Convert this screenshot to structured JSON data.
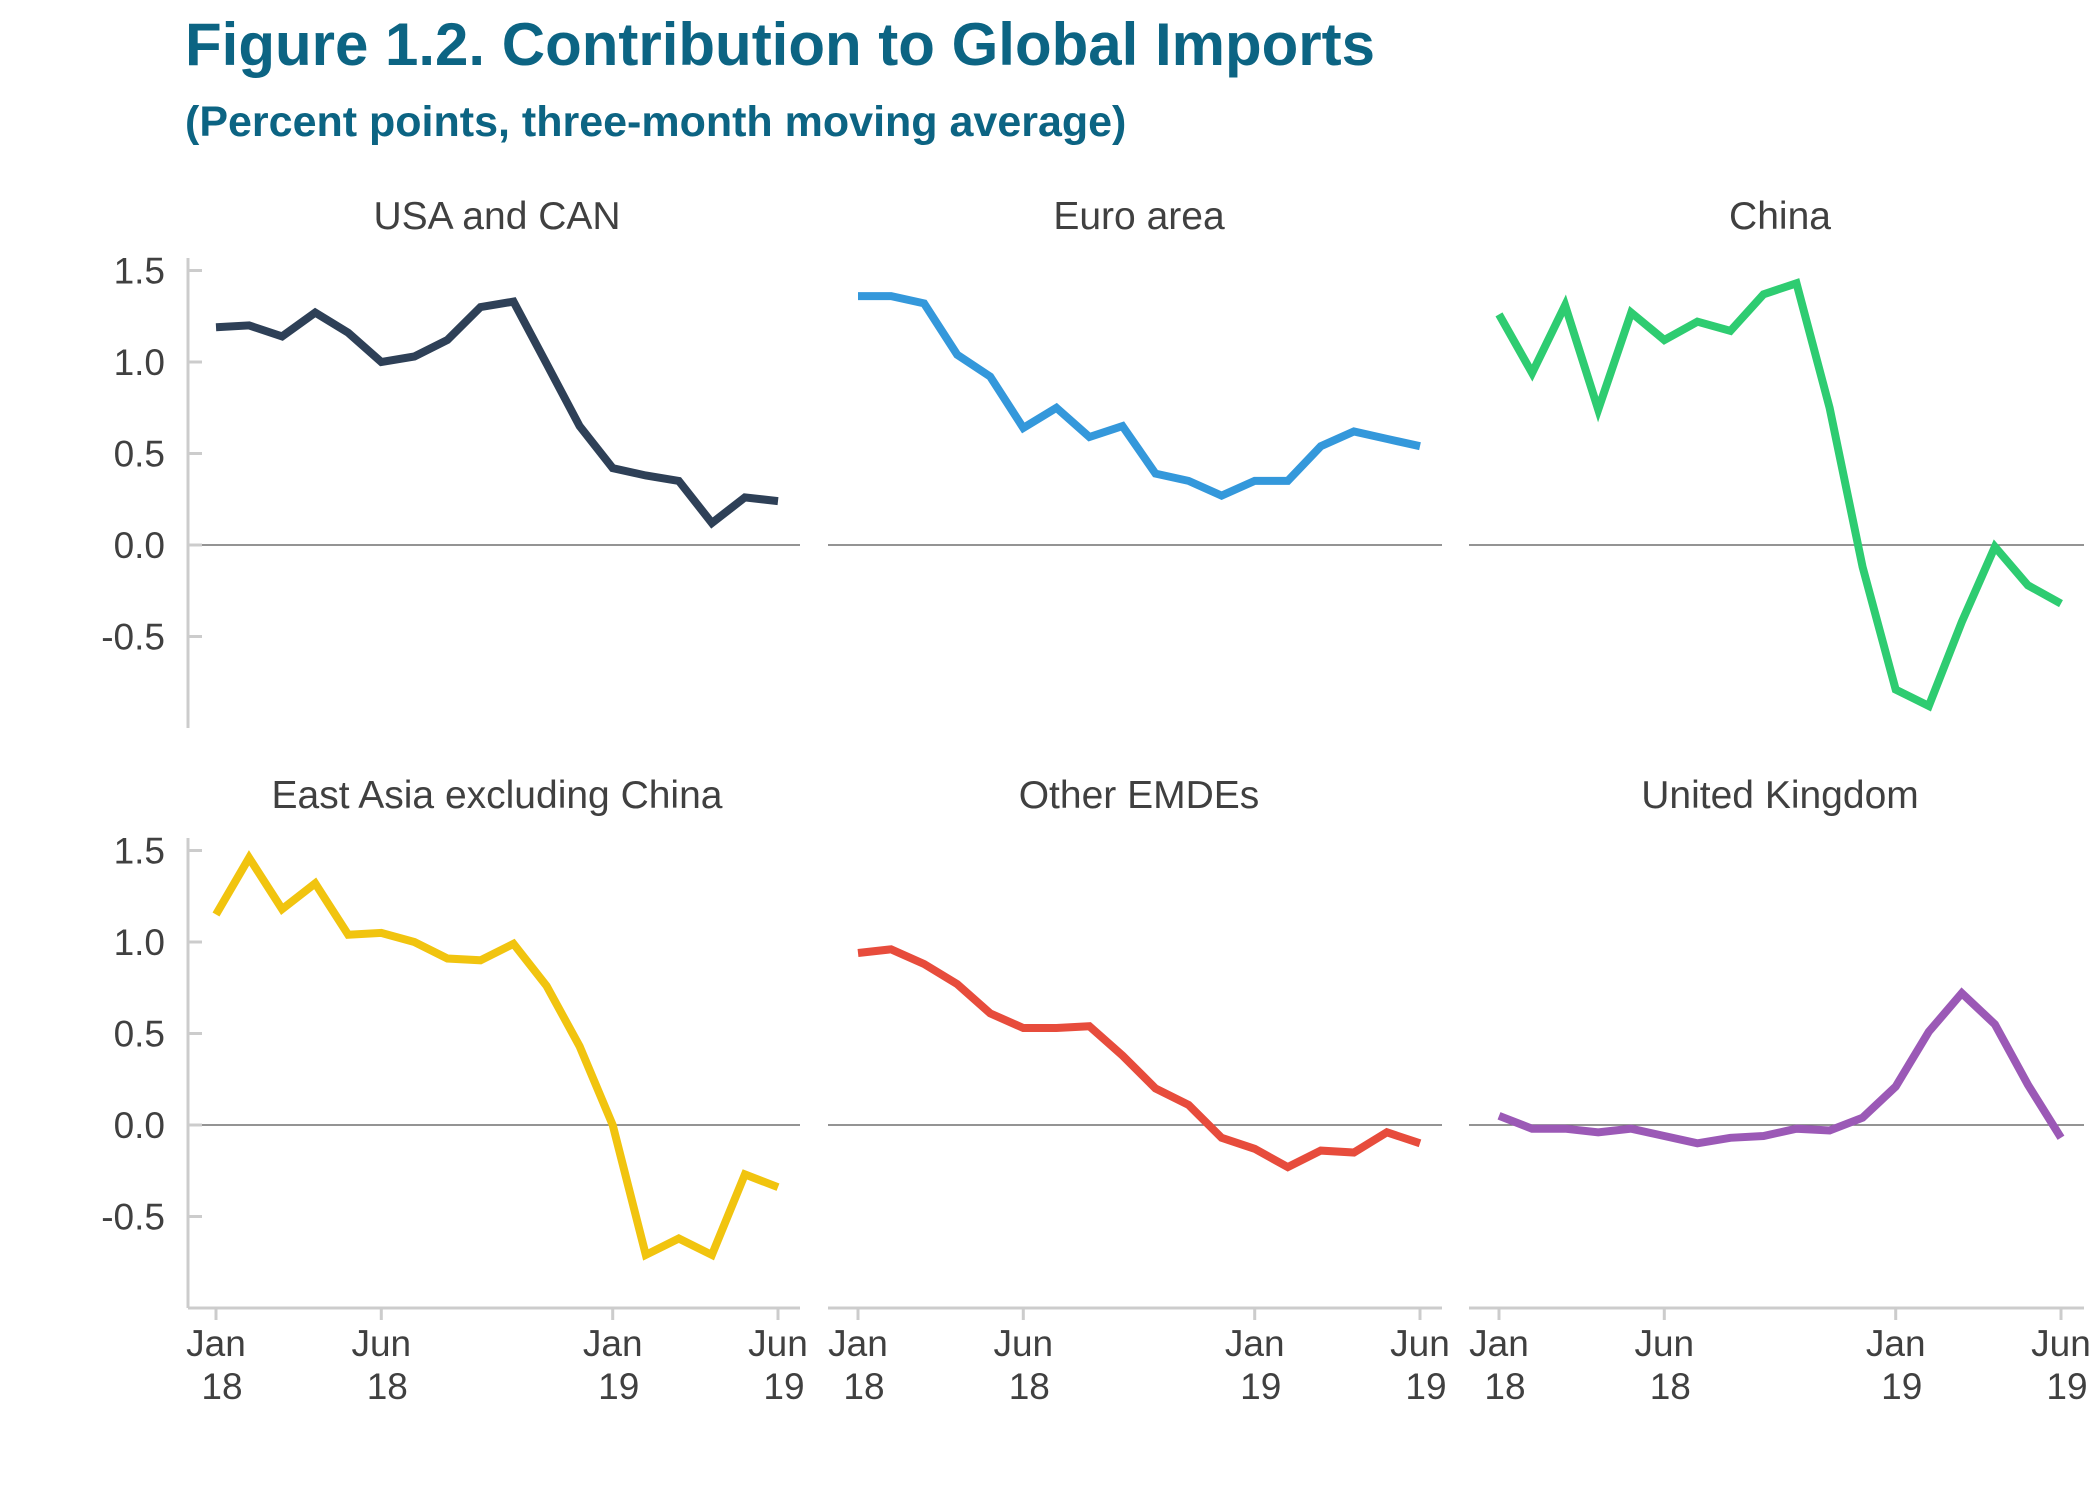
{
  "header": {
    "title": "Figure 1.2. Contribution to Global Imports",
    "subtitle": "(Percent points, three-month moving average)"
  },
  "chart_data": {
    "type": "line",
    "title": "Figure 1.2. Contribution to Global Imports",
    "subtitle": "(Percent points, three-month moving average)",
    "x_months": [
      "2018-01",
      "2018-02",
      "2018-03",
      "2018-04",
      "2018-05",
      "2018-06",
      "2018-07",
      "2018-08",
      "2018-09",
      "2018-10",
      "2018-11",
      "2018-12",
      "2019-01",
      "2019-02",
      "2019-03",
      "2019-04",
      "2019-05",
      "2019-06"
    ],
    "x_ticks": [
      {
        "month": "2018-01",
        "label": [
          "Jan",
          "18"
        ]
      },
      {
        "month": "2018-06",
        "label": [
          "Jun",
          "18"
        ]
      },
      {
        "month": "2019-01",
        "label": [
          "Jan",
          "19"
        ]
      },
      {
        "month": "2019-06",
        "label": [
          "Jun",
          "19"
        ]
      }
    ],
    "y_ticks": [
      -0.5,
      0.0,
      0.5,
      1.0,
      1.5
    ],
    "y_tick_labels": [
      "-0.5",
      "0.0",
      "0.5",
      "1.0",
      "1.5"
    ],
    "ylim": [
      -1.0,
      1.55
    ],
    "grid": false,
    "zero_line": true,
    "panels": [
      {
        "title": "USA and CAN",
        "color": "#2e4057",
        "values": [
          1.19,
          1.2,
          1.14,
          1.27,
          1.16,
          1.0,
          1.03,
          1.12,
          1.3,
          1.33,
          0.99,
          0.65,
          0.42,
          0.38,
          0.35,
          0.12,
          0.26,
          0.24
        ]
      },
      {
        "title": "Euro area",
        "color": "#3498db",
        "values": [
          1.36,
          1.36,
          1.32,
          1.04,
          0.92,
          0.64,
          0.75,
          0.59,
          0.65,
          0.39,
          0.35,
          0.27,
          0.35,
          0.35,
          0.54,
          0.62,
          0.58,
          0.54
        ]
      },
      {
        "title": "China",
        "color": "#2ecc71",
        "values": [
          1.26,
          0.94,
          1.31,
          0.74,
          1.27,
          1.12,
          1.22,
          1.17,
          1.37,
          1.43,
          0.75,
          -0.12,
          -0.79,
          -0.88,
          -0.42,
          -0.01,
          -0.22,
          -0.32
        ]
      },
      {
        "title": "East Asia excluding China",
        "color": "#f1c40f",
        "values": [
          1.15,
          1.46,
          1.18,
          1.32,
          1.04,
          1.05,
          1.0,
          0.91,
          0.9,
          0.99,
          0.76,
          0.43,
          0.0,
          -0.71,
          -0.62,
          -0.71,
          -0.27,
          -0.34
        ]
      },
      {
        "title": "Other EMDEs",
        "color": "#e74c3c",
        "values": [
          0.94,
          0.96,
          0.88,
          0.77,
          0.61,
          0.53,
          0.53,
          0.54,
          0.38,
          0.2,
          0.11,
          -0.07,
          -0.13,
          -0.23,
          -0.14,
          -0.15,
          -0.04,
          -0.1
        ]
      },
      {
        "title": "United Kingdom",
        "color": "#9b59b6",
        "values": [
          0.05,
          -0.02,
          -0.02,
          -0.04,
          -0.02,
          -0.06,
          -0.1,
          -0.07,
          -0.06,
          -0.02,
          -0.03,
          0.04,
          0.21,
          0.51,
          0.72,
          0.55,
          0.22,
          -0.07
        ]
      }
    ]
  }
}
